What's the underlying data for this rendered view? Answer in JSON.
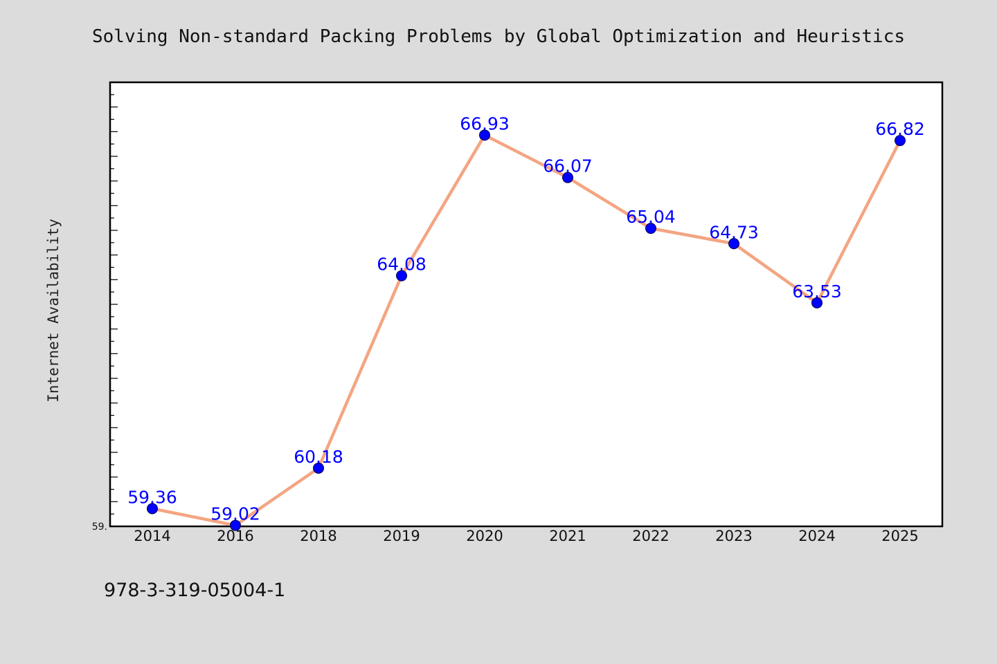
{
  "footer_text": "978-3-319-05004-1",
  "chart_data": {
    "type": "line",
    "title": "Solving Non-standard Packing Problems by Global Optimization and Heuristics",
    "xlabel": "",
    "ylabel": "Internet Availability",
    "categories": [
      "2014",
      "2016",
      "2018",
      "2019",
      "2020",
      "2021",
      "2022",
      "2023",
      "2024",
      "2025"
    ],
    "series": [
      {
        "values": [
          59.36,
          59.02,
          60.18,
          64.08,
          66.93,
          66.07,
          65.04,
          64.73,
          63.53,
          66.82
        ],
        "labels": [
          "59.36",
          "59.02",
          "60.18",
          "64.08",
          "66.93",
          "66.07",
          "65.04",
          "64.73",
          "63.53",
          "66.82"
        ]
      }
    ],
    "ylim": [
      59.0,
      68.0
    ],
    "ytick_labels": [
      "59."
    ],
    "ytick_values": [
      59.0
    ],
    "grid": false,
    "legend": "none",
    "line_color": "#f4a582",
    "marker_color": "#0000ff",
    "label_color": "#0000ff"
  }
}
